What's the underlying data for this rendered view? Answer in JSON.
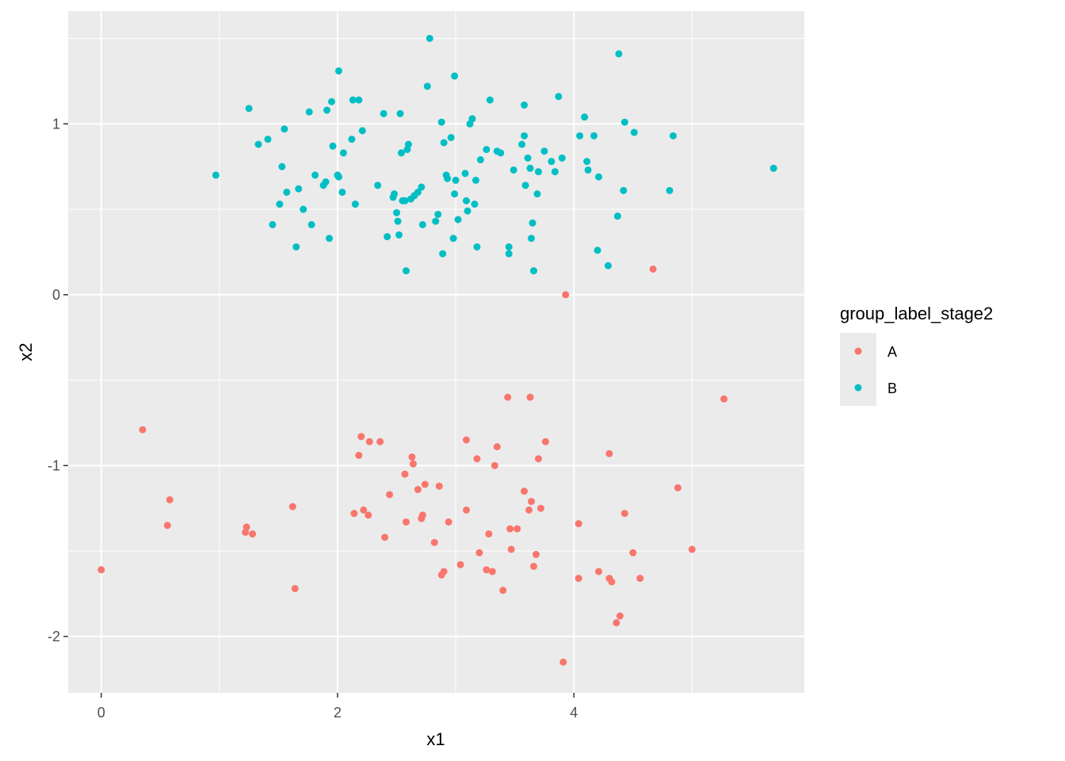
{
  "chart_data": {
    "type": "scatter",
    "xlabel": "x1",
    "ylabel": "x2",
    "xlim": [
      -0.28,
      5.95
    ],
    "ylim": [
      -2.33,
      1.66
    ],
    "x_ticks": [
      0,
      2,
      4
    ],
    "x_tick_labels": [
      "0",
      "2",
      "4"
    ],
    "y_ticks": [
      -2,
      -1,
      0,
      1
    ],
    "y_tick_labels": [
      "-2",
      "-1",
      "0",
      "1"
    ],
    "grid": true,
    "panel_background": "#ebebeb",
    "legend": {
      "title": "group_label_stage2",
      "position": "right",
      "entries": [
        "A",
        "B"
      ]
    },
    "series": [
      {
        "name": "A",
        "color": "#f8766d",
        "points": [
          [
            0.0,
            -1.61
          ],
          [
            0.35,
            -0.79
          ],
          [
            0.56,
            -1.35
          ],
          [
            0.58,
            -1.2
          ],
          [
            1.22,
            -1.39
          ],
          [
            1.23,
            -1.36
          ],
          [
            1.28,
            -1.4
          ],
          [
            1.62,
            -1.24
          ],
          [
            1.64,
            -1.72
          ],
          [
            2.14,
            -1.28
          ],
          [
            2.18,
            -0.94
          ],
          [
            2.2,
            -0.83
          ],
          [
            2.22,
            -1.26
          ],
          [
            2.26,
            -1.29
          ],
          [
            2.27,
            -0.86
          ],
          [
            2.36,
            -0.86
          ],
          [
            2.4,
            -1.42
          ],
          [
            2.44,
            -1.17
          ],
          [
            2.57,
            -1.05
          ],
          [
            2.58,
            -1.33
          ],
          [
            2.63,
            -0.95
          ],
          [
            2.64,
            -0.99
          ],
          [
            2.68,
            -1.14
          ],
          [
            2.71,
            -1.31
          ],
          [
            2.72,
            -1.29
          ],
          [
            2.74,
            -1.11
          ],
          [
            2.82,
            -1.45
          ],
          [
            2.86,
            -1.12
          ],
          [
            2.88,
            -1.64
          ],
          [
            2.9,
            -1.62
          ],
          [
            2.94,
            -1.33
          ],
          [
            3.04,
            -1.58
          ],
          [
            3.09,
            -0.85
          ],
          [
            3.09,
            -1.26
          ],
          [
            3.18,
            -0.96
          ],
          [
            3.2,
            -1.51
          ],
          [
            3.26,
            -1.61
          ],
          [
            3.28,
            -1.4
          ],
          [
            3.31,
            -1.62
          ],
          [
            3.33,
            -1.0
          ],
          [
            3.35,
            -0.89
          ],
          [
            3.4,
            -1.73
          ],
          [
            3.44,
            -0.6
          ],
          [
            3.46,
            -1.37
          ],
          [
            3.47,
            -1.49
          ],
          [
            3.52,
            -1.37
          ],
          [
            3.58,
            -1.15
          ],
          [
            3.62,
            -1.26
          ],
          [
            3.63,
            -0.6
          ],
          [
            3.64,
            -1.21
          ],
          [
            3.66,
            -1.59
          ],
          [
            3.68,
            -1.52
          ],
          [
            3.7,
            -0.96
          ],
          [
            3.72,
            -1.25
          ],
          [
            3.76,
            -0.86
          ],
          [
            3.91,
            -2.15
          ],
          [
            3.93,
            0.0
          ],
          [
            4.04,
            -1.34
          ],
          [
            4.04,
            -1.66
          ],
          [
            4.21,
            -1.62
          ],
          [
            4.3,
            -0.93
          ],
          [
            4.3,
            -1.66
          ],
          [
            4.32,
            -1.68
          ],
          [
            4.36,
            -1.92
          ],
          [
            4.39,
            -1.88
          ],
          [
            4.43,
            -1.28
          ],
          [
            4.5,
            -1.51
          ],
          [
            4.56,
            -1.66
          ],
          [
            4.67,
            0.15
          ],
          [
            4.88,
            -1.13
          ],
          [
            5.0,
            -1.49
          ],
          [
            5.27,
            -0.61
          ]
        ]
      },
      {
        "name": "B",
        "color": "#00bfc4",
        "points": [
          [
            0.97,
            0.7
          ],
          [
            1.25,
            1.09
          ],
          [
            1.33,
            0.88
          ],
          [
            1.41,
            0.91
          ],
          [
            1.45,
            0.41
          ],
          [
            1.51,
            0.53
          ],
          [
            1.53,
            0.75
          ],
          [
            1.55,
            0.97
          ],
          [
            1.57,
            0.6
          ],
          [
            1.65,
            0.28
          ],
          [
            1.67,
            0.62
          ],
          [
            1.71,
            0.5
          ],
          [
            1.76,
            1.07
          ],
          [
            1.78,
            0.41
          ],
          [
            1.81,
            0.7
          ],
          [
            1.88,
            0.64
          ],
          [
            1.9,
            0.66
          ],
          [
            1.91,
            1.08
          ],
          [
            1.93,
            0.33
          ],
          [
            1.95,
            1.13
          ],
          [
            1.96,
            0.87
          ],
          [
            2.0,
            0.7
          ],
          [
            2.01,
            1.31
          ],
          [
            2.01,
            0.69
          ],
          [
            2.04,
            0.6
          ],
          [
            2.05,
            0.83
          ],
          [
            2.12,
            0.91
          ],
          [
            2.13,
            1.14
          ],
          [
            2.15,
            0.53
          ],
          [
            2.18,
            1.14
          ],
          [
            2.21,
            0.96
          ],
          [
            2.34,
            0.64
          ],
          [
            2.39,
            1.06
          ],
          [
            2.42,
            0.34
          ],
          [
            2.47,
            0.57
          ],
          [
            2.48,
            0.59
          ],
          [
            2.5,
            0.48
          ],
          [
            2.51,
            0.43
          ],
          [
            2.52,
            0.35
          ],
          [
            2.53,
            1.06
          ],
          [
            2.54,
            0.83
          ],
          [
            2.55,
            0.55
          ],
          [
            2.57,
            0.55
          ],
          [
            2.58,
            0.14
          ],
          [
            2.59,
            0.85
          ],
          [
            2.6,
            0.88
          ],
          [
            2.62,
            0.56
          ],
          [
            2.65,
            0.58
          ],
          [
            2.68,
            0.6
          ],
          [
            2.71,
            0.63
          ],
          [
            2.72,
            0.41
          ],
          [
            2.76,
            1.22
          ],
          [
            2.78,
            1.5
          ],
          [
            2.83,
            0.43
          ],
          [
            2.85,
            0.47
          ],
          [
            2.88,
            1.01
          ],
          [
            2.89,
            0.24
          ],
          [
            2.9,
            0.89
          ],
          [
            2.92,
            0.7
          ],
          [
            2.93,
            0.68
          ],
          [
            2.96,
            0.92
          ],
          [
            2.98,
            0.33
          ],
          [
            2.99,
            0.59
          ],
          [
            2.99,
            1.28
          ],
          [
            3.0,
            0.67
          ],
          [
            3.02,
            0.44
          ],
          [
            3.08,
            0.71
          ],
          [
            3.09,
            0.55
          ],
          [
            3.1,
            0.49
          ],
          [
            3.12,
            1.0
          ],
          [
            3.14,
            1.03
          ],
          [
            3.16,
            0.53
          ],
          [
            3.17,
            0.67
          ],
          [
            3.18,
            0.28
          ],
          [
            3.21,
            0.79
          ],
          [
            3.26,
            0.85
          ],
          [
            3.29,
            1.14
          ],
          [
            3.35,
            0.84
          ],
          [
            3.38,
            0.83
          ],
          [
            3.45,
            0.24
          ],
          [
            3.45,
            0.28
          ],
          [
            3.49,
            0.73
          ],
          [
            3.56,
            0.88
          ],
          [
            3.58,
            1.11
          ],
          [
            3.58,
            0.93
          ],
          [
            3.59,
            0.64
          ],
          [
            3.61,
            0.8
          ],
          [
            3.63,
            0.74
          ],
          [
            3.64,
            0.33
          ],
          [
            3.65,
            0.42
          ],
          [
            3.66,
            0.14
          ],
          [
            3.69,
            0.59
          ],
          [
            3.7,
            0.72
          ],
          [
            3.75,
            0.84
          ],
          [
            3.81,
            0.78
          ],
          [
            3.84,
            0.72
          ],
          [
            3.87,
            1.16
          ],
          [
            3.9,
            0.8
          ],
          [
            4.05,
            0.93
          ],
          [
            4.09,
            1.04
          ],
          [
            4.11,
            0.78
          ],
          [
            4.12,
            0.73
          ],
          [
            4.17,
            0.93
          ],
          [
            4.2,
            0.26
          ],
          [
            4.21,
            0.69
          ],
          [
            4.29,
            0.17
          ],
          [
            4.37,
            0.46
          ],
          [
            4.38,
            1.41
          ],
          [
            4.42,
            0.61
          ],
          [
            4.43,
            1.01
          ],
          [
            4.51,
            0.95
          ],
          [
            4.81,
            0.61
          ],
          [
            4.84,
            0.93
          ],
          [
            5.69,
            0.74
          ]
        ]
      }
    ]
  }
}
